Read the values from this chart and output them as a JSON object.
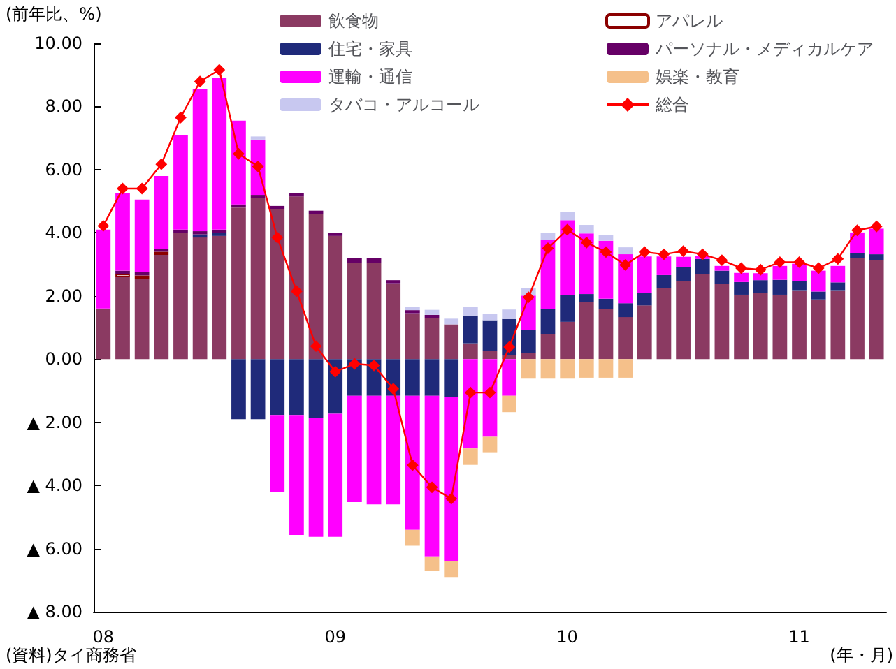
{
  "chart_data": {
    "type": "bar",
    "stacked": true,
    "ylabel": "(前年比、%)",
    "xlabel": "(年・月)",
    "annotations": [
      "(資料)タイ商務省"
    ],
    "legend": "top",
    "grid": false,
    "categories": [
      "08",
      null,
      null,
      null,
      null,
      null,
      null,
      null,
      null,
      null,
      null,
      null,
      "09",
      null,
      null,
      null,
      null,
      null,
      null,
      null,
      null,
      null,
      null,
      null,
      "10",
      null,
      null,
      null,
      null,
      null,
      null,
      null,
      null,
      null,
      null,
      null,
      "11",
      null,
      null,
      null,
      null
    ],
    "ylim": [
      -8,
      10
    ],
    "yticks": [
      {
        "value": 10,
        "label": "10.00"
      },
      {
        "value": 8,
        "label": "8.00"
      },
      {
        "value": 6,
        "label": "6.00"
      },
      {
        "value": 4,
        "label": "4.00"
      },
      {
        "value": 2,
        "label": "2.00"
      },
      {
        "value": 0,
        "label": "0.00"
      },
      {
        "value": -2,
        "label": "▲ 2.00"
      },
      {
        "value": -4,
        "label": "▲ 4.00"
      },
      {
        "value": -6,
        "label": "▲ 6.00"
      },
      {
        "value": -8,
        "label": "▲ 8.00"
      }
    ],
    "series": [
      {
        "name": "飲食物",
        "color": "#8b3a62",
        "values": [
          1.6,
          2.6,
          2.55,
          3.3,
          4.0,
          3.85,
          3.9,
          4.8,
          5.1,
          4.75,
          5.15,
          4.6,
          3.9,
          3.05,
          3.05,
          2.4,
          1.45,
          1.3,
          1.1,
          0.5,
          0.27,
          0.12,
          0.19,
          0.78,
          1.18,
          1.81,
          1.59,
          1.33,
          1.7,
          2.26,
          2.48,
          2.7,
          2.39,
          2.04,
          2.09,
          2.04,
          2.18,
          1.89,
          2.18,
          3.2,
          3.14
        ]
      },
      {
        "name": "アパレル",
        "color": "#ffffff",
        "values": [
          null,
          0.1,
          0.1,
          0.1,
          null,
          null,
          null,
          null,
          null,
          null,
          null,
          null,
          null,
          null,
          null,
          null,
          null,
          null,
          null,
          null,
          null,
          null,
          null,
          null,
          null,
          null,
          null,
          null,
          null,
          null,
          null,
          null,
          null,
          null,
          null,
          null,
          null,
          null,
          null,
          null,
          null
        ]
      },
      {
        "name": "住宅・家具",
        "color": "#1f2a7a",
        "values": [
          null,
          null,
          null,
          null,
          null,
          0.1,
          0.1,
          -1.9,
          -1.9,
          -1.77,
          -1.77,
          -1.87,
          -1.73,
          -1.16,
          -1.16,
          -1.16,
          -1.16,
          -1.16,
          -1.2,
          0.88,
          0.96,
          1.15,
          0.74,
          0.81,
          0.86,
          0.25,
          0.32,
          0.44,
          0.4,
          0.4,
          0.44,
          0.47,
          0.41,
          0.4,
          0.41,
          0.47,
          0.29,
          0.25,
          0.25,
          0.16,
          0.18
        ]
      },
      {
        "name": "パーソナル・メディカルケア",
        "color": "#660066",
        "values": [
          null,
          0.1,
          0.1,
          0.1,
          0.1,
          0.1,
          0.1,
          0.1,
          0.1,
          0.1,
          0.1,
          0.1,
          0.1,
          0.15,
          0.15,
          0.1,
          0.1,
          0.1,
          null,
          null,
          null,
          null,
          null,
          null,
          null,
          null,
          null,
          null,
          null,
          null,
          null,
          null,
          null,
          null,
          null,
          null,
          null,
          null,
          null,
          null,
          null
        ]
      },
      {
        "name": "運輸・通信",
        "color": "#ff00ff",
        "values": [
          2.5,
          2.45,
          2.3,
          2.3,
          3.0,
          4.5,
          4.8,
          2.65,
          1.75,
          -2.45,
          -3.8,
          -3.76,
          -3.9,
          -3.37,
          -3.44,
          -3.44,
          -4.25,
          -5.09,
          -5.2,
          -2.83,
          -2.46,
          -1.16,
          1.08,
          2.18,
          2.36,
          1.92,
          1.84,
          1.55,
          1.15,
          0.59,
          0.32,
          0.1,
          0.15,
          0.29,
          0.22,
          0.44,
          0.55,
          0.66,
          0.52,
          0.65,
          0.81
        ]
      },
      {
        "name": "娯楽・教育",
        "color": "#f5c08a",
        "values": [
          null,
          null,
          null,
          null,
          null,
          null,
          null,
          null,
          null,
          null,
          null,
          null,
          null,
          null,
          null,
          null,
          -0.5,
          -0.45,
          -0.5,
          -0.52,
          -0.49,
          -0.52,
          -0.62,
          -0.62,
          -0.62,
          -0.59,
          -0.59,
          -0.59,
          null,
          null,
          null,
          null,
          null,
          null,
          null,
          null,
          null,
          null,
          null,
          null,
          null
        ]
      },
      {
        "name": "タバコ・アルコール",
        "color": "#c8c8f0",
        "values": [
          null,
          null,
          null,
          null,
          null,
          null,
          null,
          null,
          0.1,
          null,
          null,
          null,
          null,
          null,
          null,
          null,
          0.1,
          0.16,
          0.18,
          0.27,
          0.2,
          0.3,
          0.25,
          0.22,
          0.27,
          0.27,
          0.19,
          0.22,
          null,
          null,
          null,
          null,
          null,
          null,
          null,
          null,
          null,
          null,
          null,
          null,
          null
        ]
      },
      {
        "name": "総合",
        "type": "line",
        "marker": "diamond",
        "color": "#ff0000",
        "values": [
          4.22,
          5.4,
          5.4,
          6.17,
          7.65,
          8.79,
          9.16,
          6.5,
          6.1,
          3.85,
          2.15,
          0.41,
          -0.4,
          -0.15,
          -0.2,
          -0.94,
          -3.36,
          -4.06,
          -4.42,
          -1.06,
          -1.06,
          0.38,
          1.96,
          3.51,
          4.1,
          3.69,
          3.39,
          2.98,
          3.39,
          3.32,
          3.42,
          3.32,
          3.13,
          2.88,
          2.83,
          3.07,
          3.07,
          2.88,
          3.17,
          4.08,
          4.2
        ]
      }
    ]
  }
}
